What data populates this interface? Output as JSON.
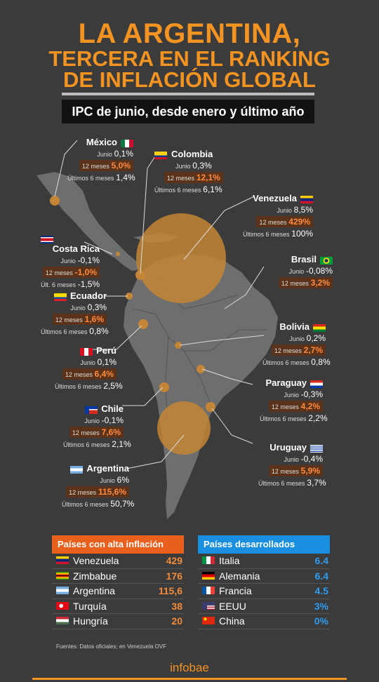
{
  "title": {
    "line1": "LA ARGENTINA,",
    "line2": "TERCERA EN EL RANKING",
    "line3": "DE INFLACIÓN GLOBAL"
  },
  "subtitle": "IPC de junio, desde enero y último año",
  "countries": [
    {
      "key": "mexico",
      "name": "México",
      "rows": [
        {
          "label": "Junio",
          "value": "0,1%"
        },
        {
          "label": "12 meses",
          "value": "5,0%",
          "hl": true
        },
        {
          "label": "Últimos 6 meses",
          "value": "1,4%"
        }
      ]
    },
    {
      "key": "colombia",
      "name": "Colombia",
      "rows": [
        {
          "label": "Junio",
          "value": "0,3%"
        },
        {
          "label": "12 meses",
          "value": "12,1%",
          "hl": true
        },
        {
          "label": "Últimos 6 meses",
          "value": "6,1%"
        }
      ]
    },
    {
      "key": "venezuela",
      "name": "Venezuela",
      "rows": [
        {
          "label": "Junio",
          "value": "8,5%"
        },
        {
          "label": "12 meses",
          "value": "429%",
          "hl": true
        },
        {
          "label": "Últimos 6 meses",
          "value": "100%"
        }
      ]
    },
    {
      "key": "costarica",
      "name": "Costa Rica",
      "rows": [
        {
          "label": "Junio",
          "value": "-0,1%"
        },
        {
          "label": "12 meses",
          "value": "-1,0%",
          "hl": true
        },
        {
          "label": "Últ. 6 meses",
          "value": "-1,5%"
        }
      ]
    },
    {
      "key": "brasil",
      "name": "Brasil",
      "rows": [
        {
          "label": "Junio",
          "value": "-0,08%"
        },
        {
          "label": "12 meses",
          "value": "3,2%",
          "hl": true
        }
      ]
    },
    {
      "key": "ecuador",
      "name": "Ecuador",
      "rows": [
        {
          "label": "Junio",
          "value": "0,3%"
        },
        {
          "label": "12 meses",
          "value": "1,6%",
          "hl": true
        },
        {
          "label": "Últimos 6 meses",
          "value": "0,8%"
        }
      ]
    },
    {
      "key": "bolivia",
      "name": "Bolivia",
      "rows": [
        {
          "label": "Junio",
          "value": "0,2%"
        },
        {
          "label": "12 meses",
          "value": "2,7%",
          "hl": true
        },
        {
          "label": "Últimos 6 meses",
          "value": "0,8%"
        }
      ]
    },
    {
      "key": "peru",
      "name": "Perú",
      "rows": [
        {
          "label": "Junio",
          "value": "0,1%"
        },
        {
          "label": "12 meses",
          "value": "6,4%",
          "hl": true
        },
        {
          "label": "Últimos 6 meses",
          "value": "2,5%"
        }
      ]
    },
    {
      "key": "paraguay",
      "name": "Paraguay",
      "rows": [
        {
          "label": "Junio",
          "value": "-0,3%"
        },
        {
          "label": "12 meses",
          "value": "4,2%",
          "hl": true
        },
        {
          "label": "Últimos 6 meses",
          "value": "2,2%"
        }
      ]
    },
    {
      "key": "chile",
      "name": "Chile",
      "rows": [
        {
          "label": "Junio",
          "value": "-0,1%"
        },
        {
          "label": "12 meses",
          "value": "7,6%",
          "hl": true
        },
        {
          "label": "Últimos 6 meses",
          "value": "2,1%"
        }
      ]
    },
    {
      "key": "uruguay",
      "name": "Uruguay",
      "rows": [
        {
          "label": "Junio",
          "value": "-0,4%"
        },
        {
          "label": "12 meses",
          "value": "5,9%",
          "hl": true
        },
        {
          "label": "Últimos 6 meses",
          "value": "3,7%"
        }
      ]
    },
    {
      "key": "argentina",
      "name": "Argentina",
      "rows": [
        {
          "label": "Junio",
          "value": "6%"
        },
        {
          "label": "12 meses",
          "value": "115,6%",
          "hl": true
        },
        {
          "label": "Últimos 6 meses",
          "value": "50,7%"
        }
      ]
    }
  ],
  "high_inflation": {
    "title": "Países con alta inflación",
    "color": "#e8601c",
    "rows": [
      {
        "country": "Venezuela",
        "value": "429"
      },
      {
        "country": "Zimbabue",
        "value": "176"
      },
      {
        "country": "Argentina",
        "value": "115,6"
      },
      {
        "country": "Turquía",
        "value": "38"
      },
      {
        "country": "Hungría",
        "value": "20"
      }
    ]
  },
  "developed": {
    "title": "Países desarrollados",
    "color": "#1a8fe0",
    "rows": [
      {
        "country": "Italia",
        "value": "6.4"
      },
      {
        "country": "Alemania",
        "value": "6.4"
      },
      {
        "country": "Francia",
        "value": "4.5"
      },
      {
        "country": "EEUU",
        "value": "3%"
      },
      {
        "country": "China",
        "value": "0%"
      }
    ]
  },
  "source": "Fuentes: Datos oficiales; en Venezuela OVF",
  "logo": "infobae",
  "colors": {
    "accent": "#f39321",
    "background": "#3b3b3b",
    "land": "#6e6e6e",
    "bubble": "#c48636"
  }
}
